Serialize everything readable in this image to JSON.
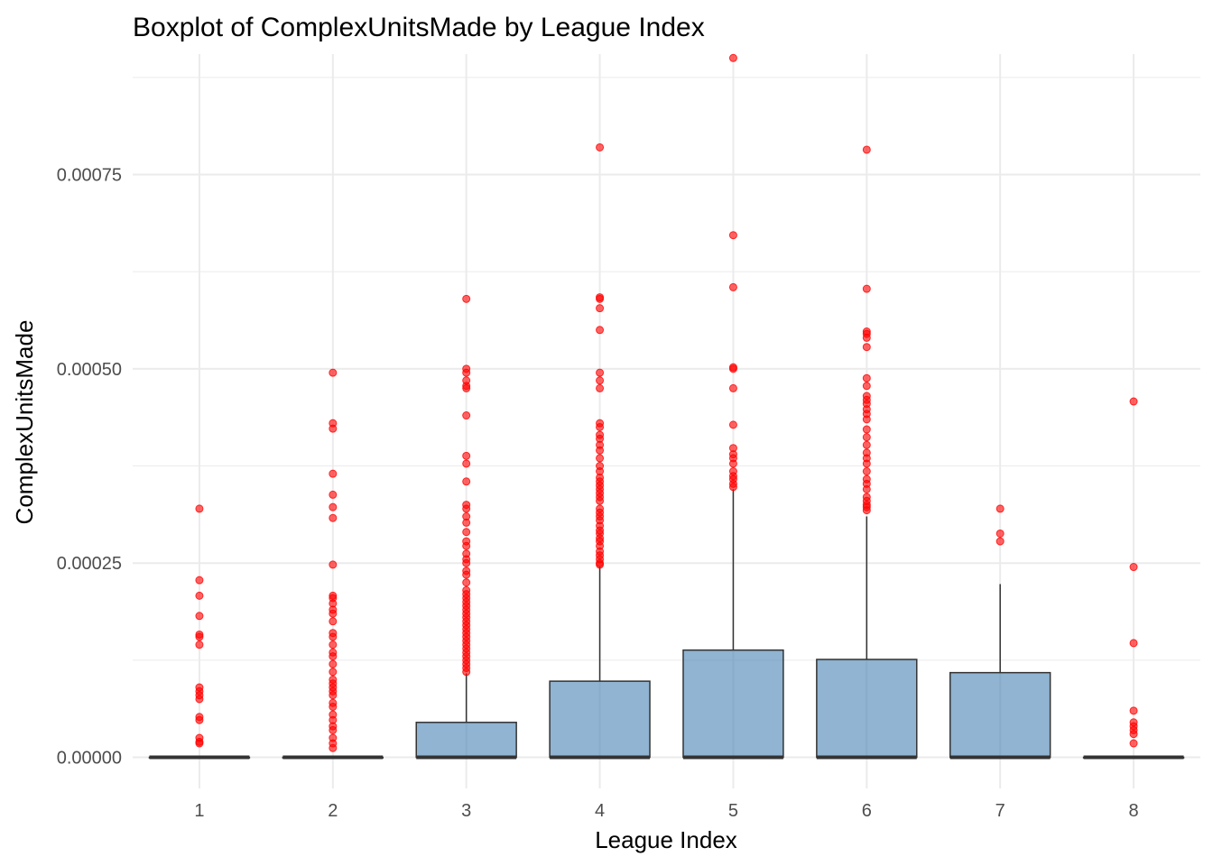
{
  "chart_data": {
    "type": "boxplot",
    "title": "Boxplot of ComplexUnitsMade by League Index",
    "xlabel": "League Index",
    "ylabel": "ComplexUnitsMade",
    "categories": [
      "1",
      "2",
      "3",
      "4",
      "5",
      "6",
      "7",
      "8"
    ],
    "ylim": [
      -4e-05,
      0.000905
    ],
    "yticks": [
      0,
      0.00025,
      0.0005,
      0.00075
    ],
    "ytick_labels": [
      "0.00000",
      "0.00025",
      "0.00050",
      "0.00075"
    ],
    "grid": true,
    "legend": "none",
    "box_fill": "#4682b4",
    "outlier_color": "#ff0000",
    "boxes": [
      {
        "category": "1",
        "min": 0,
        "q1": 0,
        "median": 0,
        "q3": 0,
        "max": 0,
        "outliers": [
          0.00032,
          0.000228,
          0.000208,
          0.000182,
          0.000158,
          0.000155,
          0.000145,
          9e-05,
          8.5e-05,
          8e-05,
          7.5e-05,
          5.2e-05,
          4.8e-05,
          2.5e-05,
          2e-05,
          1.8e-05
        ]
      },
      {
        "category": "2",
        "min": 0,
        "q1": 0,
        "median": 0,
        "q3": 0,
        "max": 0,
        "outliers": [
          0.000495,
          0.00043,
          0.000423,
          0.000365,
          0.000338,
          0.000322,
          0.000308,
          0.000248,
          0.000208,
          0.000205,
          0.000198,
          0.00019,
          0.000185,
          0.000175,
          0.00016,
          0.000155,
          0.000145,
          0.000135,
          0.00013,
          0.00012,
          0.00011,
          0.0001,
          9.5e-05,
          9e-05,
          8.5e-05,
          8e-05,
          7e-05,
          6.5e-05,
          5.5e-05,
          4.8e-05,
          4e-05,
          3.5e-05,
          2.5e-05,
          1.8e-05,
          1.2e-05
        ]
      },
      {
        "category": "3",
        "min": 0,
        "q1": 0,
        "median": 0,
        "q3": 4.5e-05,
        "max": 0.000108,
        "outliers": [
          0.00059,
          0.0005,
          0.000495,
          0.000485,
          0.000478,
          0.000475,
          0.00044,
          0.000388,
          0.000378,
          0.000355,
          0.000325,
          0.00032,
          0.00031,
          0.000302,
          0.00029,
          0.000278,
          0.000272,
          0.000262,
          0.000255,
          0.00025,
          0.00024,
          0.000235,
          0.000225,
          0.000215,
          0.00021,
          0.000205,
          0.0002,
          0.000195,
          0.00019,
          0.000185,
          0.00018,
          0.000175,
          0.00017,
          0.000165,
          0.00016,
          0.000155,
          0.00015,
          0.000145,
          0.00014,
          0.000135,
          0.00013,
          0.000125,
          0.00012,
          0.000115,
          0.00011
        ]
      },
      {
        "category": "4",
        "min": 0,
        "q1": 0,
        "median": 0,
        "q3": 9.8e-05,
        "max": 0.000245,
        "outliers": [
          0.000785,
          0.000592,
          0.00059,
          0.000578,
          0.00055,
          0.000495,
          0.000485,
          0.000475,
          0.00043,
          0.000425,
          0.000415,
          0.00041,
          0.000402,
          0.000395,
          0.000385,
          0.000375,
          0.000368,
          0.00036,
          0.000355,
          0.00035,
          0.000345,
          0.00034,
          0.000335,
          0.00033,
          0.00032,
          0.000315,
          0.00031,
          0.000305,
          0.000298,
          0.000292,
          0.000288,
          0.000282,
          0.000278,
          0.000272,
          0.000265,
          0.00026,
          0.000255,
          0.00025,
          0.000248
        ]
      },
      {
        "category": "5",
        "min": 0,
        "q1": 0,
        "median": 0,
        "q3": 0.000138,
        "max": 0.000345,
        "outliers": [
          0.0009,
          0.000672,
          0.000605,
          0.000502,
          0.0005,
          0.000475,
          0.000428,
          0.000398,
          0.00039,
          0.000385,
          0.000378,
          0.000368,
          0.000362,
          0.000358,
          0.000352,
          0.000348
        ]
      },
      {
        "category": "6",
        "min": 0,
        "q1": 0,
        "median": 0,
        "q3": 0.000126,
        "max": 0.00031,
        "outliers": [
          0.000782,
          0.000603,
          0.000548,
          0.000545,
          0.00054,
          0.000528,
          0.000488,
          0.000478,
          0.000465,
          0.00046,
          0.000455,
          0.000448,
          0.000442,
          0.000435,
          0.000422,
          0.000412,
          0.000402,
          0.000392,
          0.000385,
          0.000378,
          0.000368,
          0.000358,
          0.000352,
          0.000345,
          0.000335,
          0.00033,
          0.000325,
          0.000322,
          0.000318
        ]
      },
      {
        "category": "7",
        "min": 0,
        "q1": 0,
        "median": 0,
        "q3": 0.000109,
        "max": 0.000223,
        "outliers": [
          0.00032,
          0.000288,
          0.000278
        ]
      },
      {
        "category": "8",
        "min": 0,
        "q1": 0,
        "median": 0,
        "q3": 0,
        "max": 0,
        "outliers": [
          0.000458,
          0.000245,
          0.000147,
          6e-05,
          4.5e-05,
          4e-05,
          3.5e-05,
          3e-05,
          1.8e-05
        ]
      }
    ]
  }
}
